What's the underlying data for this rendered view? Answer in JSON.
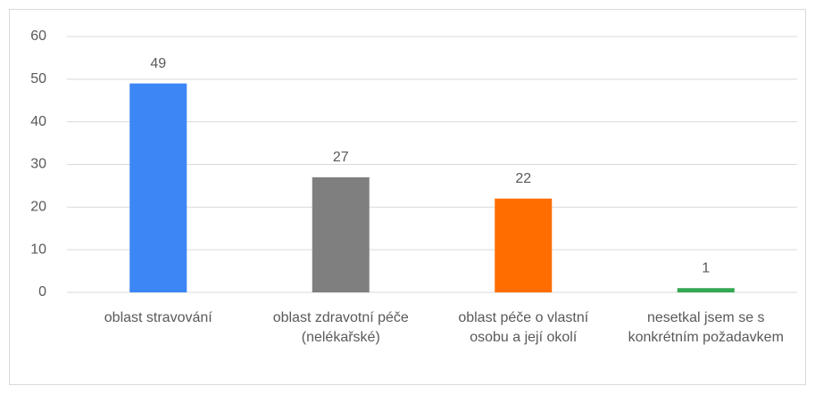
{
  "chart_data": {
    "type": "bar",
    "categories": [
      "oblast stravování",
      "oblast zdravotní péče (nelékařské)",
      "oblast péče o vlastní osobu a její okolí",
      "nesetkal jsem se s konkrétním požadavkem"
    ],
    "values": [
      49,
      27,
      22,
      1
    ],
    "colors": [
      "#3d86f5",
      "#7f7f7f",
      "#ff6d01",
      "#34a853"
    ],
    "ylim": [
      0,
      60
    ],
    "yticks": [
      0,
      10,
      20,
      30,
      40,
      50,
      60
    ],
    "grid": true
  }
}
